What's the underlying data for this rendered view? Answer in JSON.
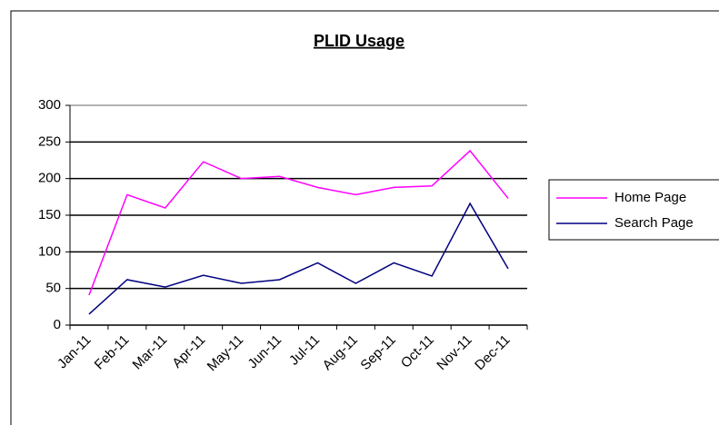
{
  "chart_data": {
    "type": "line",
    "title": "PLID Usage",
    "categories": [
      "Jan-11",
      "Feb-11",
      "Mar-11",
      "Apr-11",
      "May-11",
      "Jun-11",
      "Jul-11",
      "Aug-11",
      "Sep-11",
      "Oct-11",
      "Nov-11",
      "Dec-11"
    ],
    "series": [
      {
        "name": "Home Page",
        "color": "#ff00ff",
        "values": [
          41,
          178,
          160,
          223,
          200,
          203,
          188,
          178,
          188,
          190,
          238,
          173
        ]
      },
      {
        "name": "Search Page",
        "color": "#000080",
        "values": [
          15,
          62,
          52,
          68,
          57,
          62,
          85,
          57,
          85,
          67,
          166,
          77
        ]
      }
    ],
    "ylim": [
      0,
      300
    ],
    "yticks": [
      0,
      50,
      100,
      150,
      200,
      250,
      300
    ],
    "grid": true,
    "legend": "right"
  }
}
